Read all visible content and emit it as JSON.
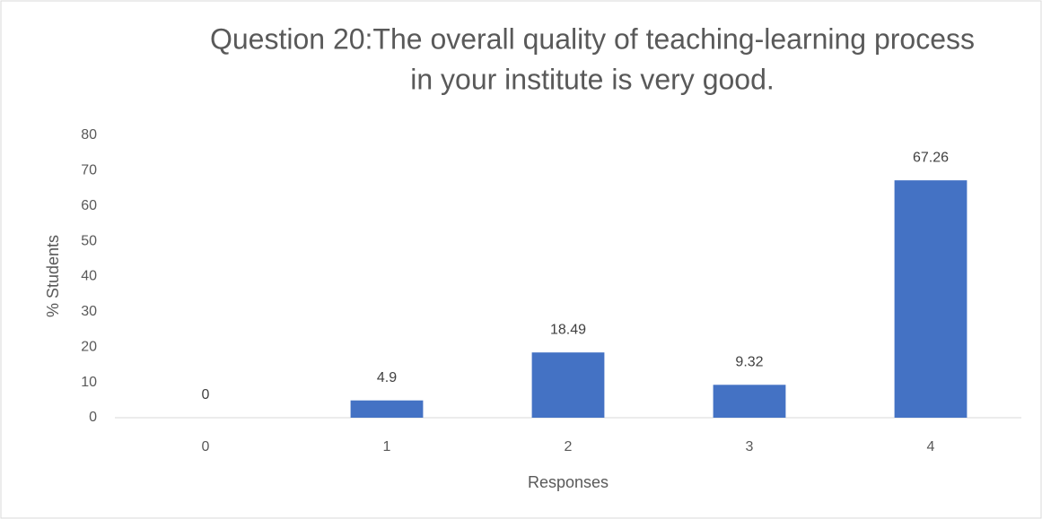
{
  "chart_data": {
    "type": "bar",
    "title": [
      "Question 20:The overall quality of teaching-learning process",
      "in your institute is very good."
    ],
    "xlabel": "Responses",
    "ylabel": "% Students",
    "categories": [
      "0",
      "1",
      "2",
      "3",
      "4"
    ],
    "values": [
      0,
      4.9,
      18.49,
      9.32,
      67.26
    ],
    "color": "#4472c4",
    "ylim": [
      0,
      80
    ],
    "yticks": [
      0,
      10,
      20,
      30,
      40,
      50,
      60,
      70,
      80
    ],
    "grid": false
  }
}
